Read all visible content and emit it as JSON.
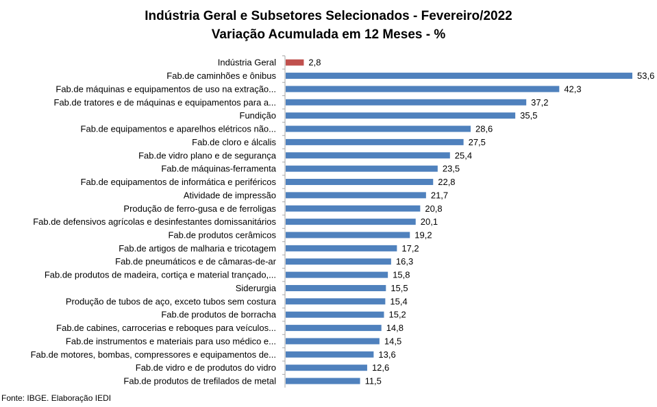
{
  "chart_data": {
    "type": "bar",
    "orientation": "horizontal",
    "title": "Indústria Geral e Subsetores Selecionados - Fevereiro/2022",
    "subtitle": "Variação Acumulada em 12 Meses - %",
    "categories": [
      "Indústria Geral",
      "Fab.de caminhões e ônibus",
      "Fab.de máquinas e equipamentos de uso na extração...",
      "Fab.de tratores e de máquinas e equipamentos para a...",
      "Fundição",
      "Fab.de equipamentos e aparelhos elétricos não...",
      "Fab.de cloro e álcalis",
      "Fab.de vidro plano e de segurança",
      "Fab.de máquinas-ferramenta",
      "Fab.de equipamentos de informática e periféricos",
      "Atividade de impressão",
      "Produção de ferro-gusa e de ferroligas",
      "Fab.de defensivos agrícolas e desinfestantes domissanitários",
      "Fab.de produtos cerâmicos",
      "Fab.de artigos de malharia e tricotagem",
      "Fab.de pneumáticos e de câmaras-de-ar",
      "Fab.de produtos de madeira, cortiça e material trançado,...",
      "Siderurgia",
      "Produção de tubos de aço, exceto tubos sem costura",
      "Fab.de produtos de borracha",
      "Fab.de cabines, carrocerias e reboques para veículos...",
      "Fab.de instrumentos e materiais para uso médico e...",
      "Fab.de motores, bombas, compressores e equipamentos de...",
      "Fab.de vidro e de produtos do vidro",
      "Fab.de produtos de trefilados de metal"
    ],
    "values": [
      2.8,
      53.6,
      42.3,
      37.2,
      35.5,
      28.6,
      27.5,
      25.4,
      23.5,
      22.8,
      21.7,
      20.8,
      20.1,
      19.2,
      17.2,
      16.3,
      15.8,
      15.5,
      15.4,
      15.2,
      14.8,
      14.5,
      13.6,
      12.6,
      11.5
    ],
    "value_labels": [
      "2,8",
      "53,6",
      "42,3",
      "37,2",
      "35,5",
      "28,6",
      "27,5",
      "25,4",
      "23,5",
      "22,8",
      "21,7",
      "20,8",
      "20,1",
      "19,2",
      "17,2",
      "16,3",
      "15,8",
      "15,5",
      "15,4",
      "15,2",
      "14,8",
      "14,5",
      "13,6",
      "12,6",
      "11,5"
    ],
    "highlight_index": 0,
    "colors": {
      "highlight": "#C0504D",
      "bar": "#4F81BD",
      "axis": "#A6A6A6"
    },
    "xlim": [
      0,
      53.6
    ],
    "grid": false,
    "legend": "none"
  },
  "source": "Fonte: IBGE. Elaboração IEDI"
}
